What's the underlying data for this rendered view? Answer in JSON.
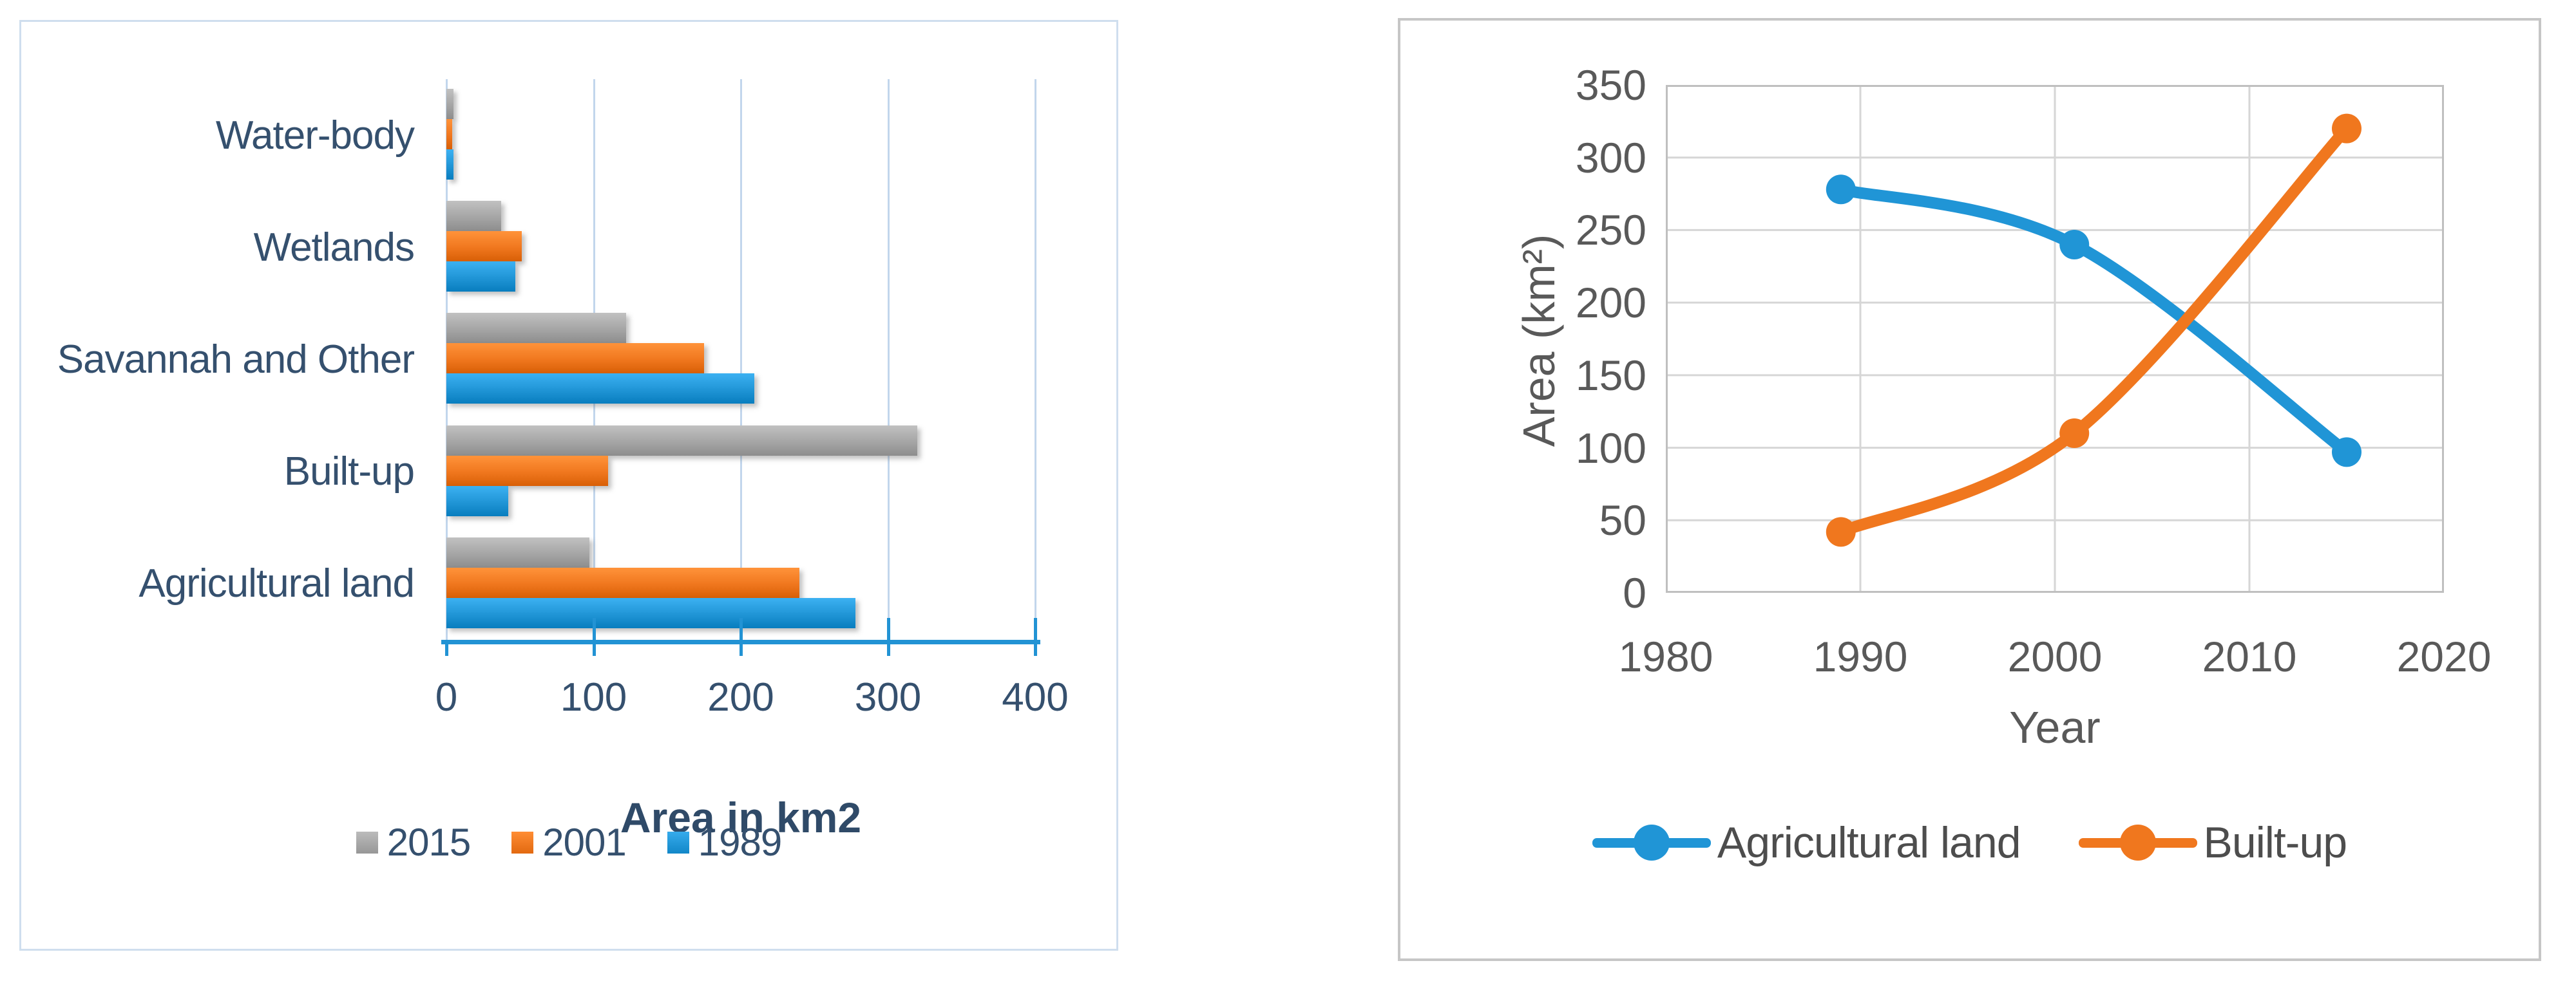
{
  "figure": {
    "background": "#ffffff"
  },
  "bar_chart_style": {
    "panel_border_color": "#cfdeee",
    "axis_color": "#2293d4",
    "gridline_color": "#c2d6ec",
    "text_color": "#35506e"
  },
  "line_chart_style": {
    "panel_border_color": "#c6c6c6",
    "plot_border_color": "#bfbfbf",
    "gridline_color": "#d6d6d6",
    "text_color": "#595959",
    "legend_text_color": "#4d4d4d"
  },
  "chart_data": [
    {
      "type": "bar",
      "orientation": "horizontal",
      "title": "",
      "xlabel": "Area in km2",
      "ylabel": "",
      "categories": [
        "Water-body",
        "Wetlands",
        "Savannah and Other",
        "Built-up",
        "Agricultural land"
      ],
      "series": [
        {
          "name": "2015",
          "color": "#a5a5a5",
          "values": [
            5,
            37,
            122,
            320,
            97
          ]
        },
        {
          "name": "2001",
          "color": "#f0771e",
          "values": [
            4,
            51,
            175,
            110,
            240
          ]
        },
        {
          "name": "1989",
          "color": "#2095d6",
          "values": [
            5,
            47,
            209,
            42,
            278
          ]
        }
      ],
      "xlim": [
        0,
        400
      ],
      "x_ticks": [
        0,
        100,
        200,
        300,
        400
      ],
      "grid": "vertical",
      "legend_position": "bottom"
    },
    {
      "type": "line",
      "smooth": true,
      "markers": "circle",
      "title": "",
      "xlabel": "Year",
      "ylabel": "Area (km²)",
      "x": [
        1989,
        2001,
        2015
      ],
      "series": [
        {
          "name": "Agricultural land",
          "color": "#2095d6",
          "values": [
            278,
            240,
            97
          ]
        },
        {
          "name": "Built-up",
          "color": "#f0771e",
          "values": [
            42,
            110,
            320
          ]
        }
      ],
      "xlim": [
        1980,
        2020
      ],
      "ylim": [
        0,
        350
      ],
      "x_ticks": [
        1980,
        1990,
        2000,
        2010,
        2020
      ],
      "y_ticks": [
        0,
        50,
        100,
        150,
        200,
        250,
        300,
        350
      ],
      "grid": true,
      "legend_position": "bottom"
    }
  ]
}
